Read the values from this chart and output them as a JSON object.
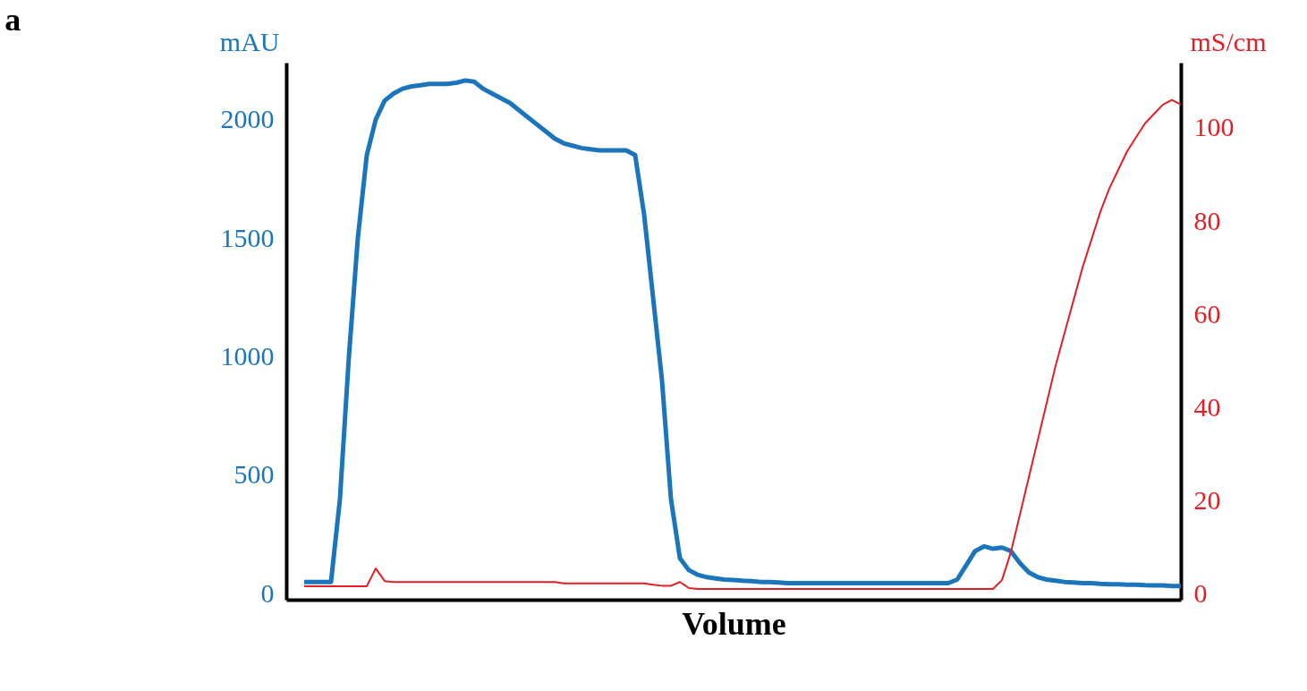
{
  "chart_data": {
    "type": "line",
    "title": "a",
    "xlabel": "Volume",
    "ylabel": "mAU",
    "y2label": "mS/cm",
    "categories": [
      null,
      null,
      null,
      null,
      null,
      null,
      null,
      null,
      null,
      null,
      null,
      null,
      null,
      null,
      null,
      null,
      null,
      null,
      null,
      null,
      null,
      null,
      null,
      null,
      null,
      null,
      null,
      null,
      null,
      null,
      null,
      null,
      null,
      null,
      null,
      null,
      null,
      null,
      null,
      null,
      null,
      null,
      null,
      null,
      null,
      null,
      null,
      null,
      null,
      null,
      null,
      null,
      null,
      null,
      null,
      null,
      null,
      null,
      null,
      null,
      null,
      null,
      null,
      null,
      null,
      null,
      null,
      null,
      null,
      null,
      null,
      null,
      null,
      null,
      null,
      null,
      null,
      null,
      null,
      null,
      null,
      null,
      null,
      null,
      null,
      null,
      null,
      null,
      null,
      null,
      null,
      null,
      null,
      null,
      null,
      null,
      null,
      null,
      null,
      null,
      null
    ],
    "series": [
      {
        "color": "#1b75bc",
        "axis": "y",
        "values": [
          null,
          null,
          50,
          50,
          50,
          50,
          400,
          1000,
          1500,
          1850,
          2000,
          2080,
          2110,
          2130,
          2140,
          2145,
          2150,
          2150,
          2150,
          2155,
          2165,
          2160,
          2130,
          2110,
          2090,
          2070,
          2040,
          2010,
          1980,
          1950,
          1920,
          1900,
          1890,
          1880,
          1875,
          1870,
          1870,
          1870,
          1870,
          1850,
          1600,
          1250,
          900,
          400,
          150,
          100,
          80,
          70,
          65,
          60,
          58,
          55,
          53,
          50,
          50,
          48,
          45,
          45,
          45,
          45,
          45,
          45,
          45,
          45,
          45,
          45,
          45,
          45,
          45,
          45,
          45,
          45,
          45,
          45,
          45,
          60,
          120,
          180,
          200,
          190,
          195,
          180,
          130,
          90,
          70,
          60,
          55,
          50,
          48,
          45,
          45,
          42,
          40,
          40,
          38,
          38,
          36,
          35,
          35,
          33,
          33
        ]
      },
      {
        "color": "#e31e24",
        "axis": "y2",
        "values": [
          null,
          null,
          1.7,
          1.7,
          1.7,
          1.7,
          1.7,
          1.7,
          1.7,
          1.7,
          5.5,
          2.8,
          2.6,
          2.6,
          2.6,
          2.6,
          2.6,
          2.6,
          2.6,
          2.6,
          2.6,
          2.6,
          2.6,
          2.6,
          2.6,
          2.6,
          2.6,
          2.6,
          2.6,
          2.6,
          2.6,
          2.3,
          2.3,
          2.3,
          2.3,
          2.3,
          2.3,
          2.3,
          2.3,
          2.3,
          2.3,
          2,
          1.8,
          1.8,
          2.6,
          1.3,
          1.1,
          1.1,
          1.1,
          1.1,
          1.1,
          1.1,
          1.1,
          1.1,
          1.1,
          1.1,
          1.1,
          1.1,
          1.1,
          1.1,
          1.1,
          1.1,
          1.1,
          1.1,
          1.1,
          1.1,
          1.1,
          1.1,
          1.1,
          1.1,
          1.1,
          1.1,
          1.1,
          1.1,
          1.1,
          1.1,
          1.1,
          1.1,
          1.1,
          1.1,
          3,
          9,
          17,
          25,
          33,
          41,
          49,
          56,
          63,
          70,
          76,
          82,
          87,
          91,
          95,
          98,
          101,
          103,
          105,
          106,
          105
        ]
      }
    ],
    "ylim": [
      -25,
      2240
    ],
    "yticks": [
      0,
      500,
      1000,
      1500,
      2000
    ],
    "y2lim": [
      -1.2,
      114
    ],
    "y2ticks": [
      0,
      20,
      40,
      60,
      80,
      100
    ],
    "grid": false
  }
}
